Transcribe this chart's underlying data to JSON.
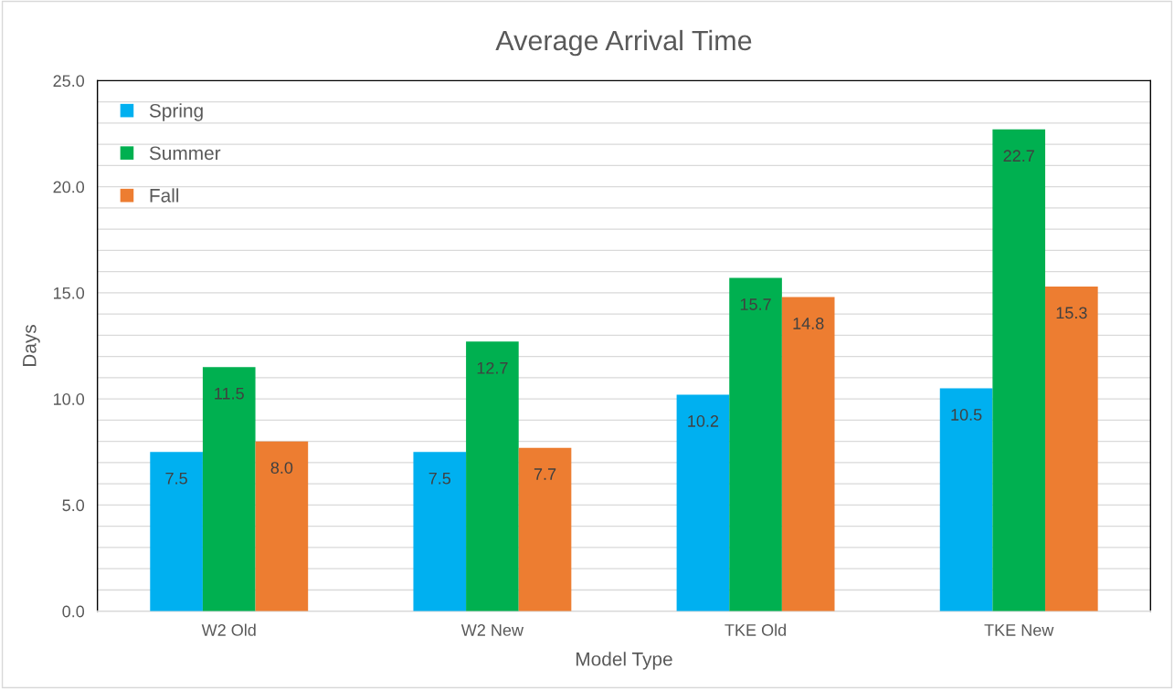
{
  "chart_data": {
    "type": "bar",
    "title": "Average Arrival Time",
    "xlabel": "Model Type",
    "ylabel": "Days",
    "categories": [
      "W2 Old",
      "W2 New",
      "TKE Old",
      "TKE New"
    ],
    "series": [
      {
        "name": "Spring",
        "color": "#00b0f0",
        "values": [
          7.5,
          7.5,
          10.2,
          10.5
        ],
        "value_labels": [
          "7.5",
          "7.5",
          "10.2",
          "10.5"
        ]
      },
      {
        "name": "Summer",
        "color": "#00b050",
        "values": [
          11.5,
          12.7,
          15.7,
          22.7
        ],
        "value_labels": [
          "11.5",
          "12.7",
          "15.7",
          "22.7"
        ]
      },
      {
        "name": "Fall",
        "color": "#ed7d31",
        "values": [
          8.0,
          7.7,
          14.8,
          15.3
        ],
        "value_labels": [
          "8.0",
          "7.7",
          "14.8",
          "15.3"
        ]
      }
    ],
    "ylim": [
      0,
      25
    ],
    "yticks": [
      {
        "value": 0,
        "label": "0.0"
      },
      {
        "value": 1,
        "label": null
      },
      {
        "value": 2,
        "label": null
      },
      {
        "value": 3,
        "label": null
      },
      {
        "value": 4,
        "label": null
      },
      {
        "value": 5,
        "label": "5.0"
      },
      {
        "value": 6,
        "label": null
      },
      {
        "value": 7,
        "label": null
      },
      {
        "value": 8,
        "label": null
      },
      {
        "value": 9,
        "label": null
      },
      {
        "value": 10,
        "label": "10.0"
      },
      {
        "value": 11,
        "label": null
      },
      {
        "value": 12,
        "label": null
      },
      {
        "value": 13,
        "label": null
      },
      {
        "value": 14,
        "label": null
      },
      {
        "value": 15,
        "label": "15.0"
      },
      {
        "value": 16,
        "label": null
      },
      {
        "value": 17,
        "label": null
      },
      {
        "value": 18,
        "label": null
      },
      {
        "value": 19,
        "label": null
      },
      {
        "value": 20,
        "label": "20.0"
      },
      {
        "value": 21,
        "label": null
      },
      {
        "value": 22,
        "label": null
      },
      {
        "value": 23,
        "label": null
      },
      {
        "value": 24,
        "label": null
      },
      {
        "value": 25,
        "label": "25.0"
      }
    ],
    "grid": "y",
    "legend": "top left"
  }
}
